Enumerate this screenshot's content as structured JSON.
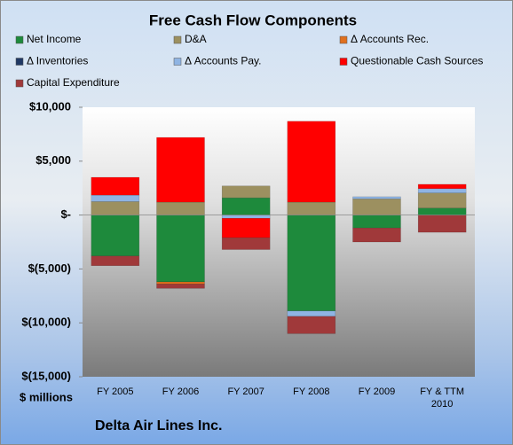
{
  "chart_data": {
    "type": "bar",
    "stacked": true,
    "title": "Free Cash Flow Components",
    "y_axis_label": "$ millions",
    "footer": "Delta Air Lines Inc.",
    "categories": [
      "FY 2005",
      "FY 2006",
      "FY 2007",
      "FY 2008",
      "FY 2009",
      "FY & TTM 2010"
    ],
    "series": [
      {
        "name": "Net Income",
        "color": "#1e8a3c",
        "values": [
          -3800,
          -6200,
          1600,
          -8900,
          -1200,
          650
        ]
      },
      {
        "name": "D&A",
        "color": "#9c9060",
        "values": [
          1250,
          1200,
          1100,
          1200,
          1500,
          1400
        ]
      },
      {
        "name": "Δ Accounts Rec.",
        "color": "#e0701e",
        "values": [
          0,
          -200,
          0,
          0,
          0,
          0
        ]
      },
      {
        "name": "Δ Inventories",
        "color": "#1f3864",
        "values": [
          0,
          0,
          0,
          0,
          0,
          0
        ]
      },
      {
        "name": "Δ Accounts Pay.",
        "color": "#8fb4e3",
        "values": [
          600,
          0,
          -300,
          -500,
          200,
          400
        ]
      },
      {
        "name": "Questionable Cash Sources",
        "color": "#ff0000",
        "values": [
          1650,
          6000,
          -1800,
          7500,
          0,
          400
        ]
      },
      {
        "name": "Capital Expenditure",
        "color": "#a0393a",
        "values": [
          -900,
          -400,
          -1100,
          -1600,
          -1300,
          -1600
        ]
      }
    ],
    "ylim": [
      -15000,
      10000
    ],
    "yticks": [
      {
        "value": -15000,
        "label": "$(15,000)"
      },
      {
        "value": -10000,
        "label": "$(10,000)"
      },
      {
        "value": -5000,
        "label": "$(5,000)"
      },
      {
        "value": 0,
        "label": "$-"
      },
      {
        "value": 5000,
        "label": "$5,000"
      },
      {
        "value": 10000,
        "label": "$10,000"
      }
    ]
  }
}
